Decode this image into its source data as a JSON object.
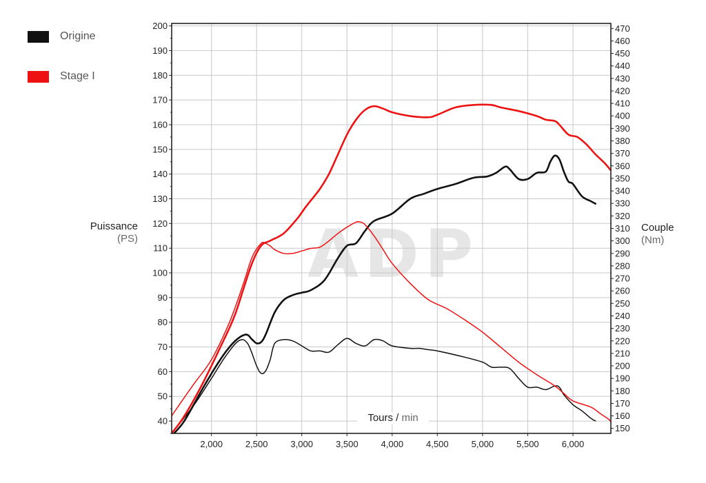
{
  "legend": {
    "items": [
      {
        "label": "Origine",
        "color": "#111111"
      },
      {
        "label": "Stage I",
        "color": "#ee1111"
      }
    ]
  },
  "axes": {
    "left_title": "Puissance",
    "left_unit": "(PS)",
    "right_title": "Couple",
    "right_unit": "(Nm)",
    "x_title": "Tours",
    "x_sep": " / ",
    "x_unit": "min"
  },
  "watermark": {
    "text": "ADP"
  },
  "chart_data": {
    "type": "line",
    "x_range": [
      1560,
      6420
    ],
    "x_ticks": [
      2000,
      2500,
      3000,
      3500,
      4000,
      4500,
      5000,
      5500,
      6000
    ],
    "x_tick_labels": [
      "2,000",
      "2,500",
      "3,000",
      "3,500",
      "4,000",
      "4,500",
      "5,000",
      "5,500",
      "6,000"
    ],
    "y_left": {
      "range": [
        35,
        201
      ],
      "ticks": [
        40,
        50,
        60,
        70,
        80,
        90,
        100,
        110,
        120,
        130,
        140,
        150,
        160,
        170,
        180,
        190,
        200
      ]
    },
    "y_right": {
      "range": [
        146,
        474
      ],
      "ticks": [
        150,
        160,
        170,
        180,
        190,
        200,
        210,
        220,
        230,
        240,
        250,
        260,
        270,
        280,
        290,
        300,
        310,
        320,
        330,
        340,
        350,
        360,
        370,
        380,
        390,
        400,
        410,
        420,
        430,
        440,
        450,
        460,
        470
      ]
    },
    "grid": true,
    "legend_position": "top-left",
    "series": [
      {
        "name": "Origine",
        "quantity": "power",
        "axis": "left",
        "color": "#111111",
        "x": [
          1560,
          1700,
          1900,
          2100,
          2250,
          2380,
          2450,
          2500,
          2550,
          2600,
          2700,
          2800,
          2900,
          3000,
          3100,
          3250,
          3400,
          3500,
          3600,
          3700,
          3800,
          4000,
          4200,
          4350,
          4500,
          4700,
          4900,
          5050,
          5150,
          5250,
          5300,
          5400,
          5500,
          5600,
          5700,
          5750,
          5800,
          5850,
          5900,
          5950,
          6000,
          6100,
          6200,
          6250
        ],
        "y": [
          34,
          40,
          53,
          65,
          72,
          75,
          73,
          71.5,
          72,
          75,
          84,
          89,
          91,
          92,
          93,
          97,
          106,
          111,
          112,
          117,
          121,
          124,
          130,
          132,
          134,
          136,
          138.5,
          139,
          140.5,
          143,
          142,
          138,
          138,
          140.5,
          141,
          145,
          147.5,
          146,
          141,
          137,
          136,
          131,
          129,
          128
        ]
      },
      {
        "name": "Origine",
        "quantity": "torque",
        "axis": "right",
        "color": "#111111",
        "x": [
          1560,
          1800,
          2000,
          2150,
          2300,
          2400,
          2500,
          2550,
          2600,
          2650,
          2700,
          2800,
          2900,
          3000,
          3100,
          3200,
          3300,
          3400,
          3500,
          3600,
          3700,
          3800,
          3900,
          4000,
          4200,
          4300,
          4400,
          4500,
          4800,
          5000,
          5100,
          5200,
          5300,
          5400,
          5500,
          5600,
          5700,
          5800,
          5850,
          5900,
          6000,
          6100,
          6200,
          6250
        ],
        "y": [
          146,
          168,
          190,
          207,
          220,
          218,
          200,
          194,
          196,
          205,
          218,
          221,
          220,
          216,
          212,
          212,
          211,
          217,
          222,
          218,
          216,
          221,
          220,
          216,
          214,
          214,
          213,
          212,
          207,
          203,
          199,
          199,
          198,
          190,
          183,
          183,
          181,
          184,
          183,
          177,
          169,
          164,
          158,
          156
        ]
      },
      {
        "name": "Stage I",
        "quantity": "power",
        "axis": "left",
        "color": "#ee1111",
        "x": [
          1560,
          1700,
          1900,
          2100,
          2250,
          2350,
          2450,
          2550,
          2650,
          2800,
          2950,
          3050,
          3200,
          3300,
          3400,
          3500,
          3600,
          3700,
          3800,
          3900,
          4000,
          4200,
          4400,
          4500,
          4700,
          4900,
          5100,
          5200,
          5400,
          5600,
          5700,
          5800,
          5850,
          5950,
          6050,
          6150,
          6250,
          6350,
          6420
        ],
        "y": [
          35,
          42,
          55,
          70,
          82,
          93,
          104,
          111,
          113,
          116,
          122,
          127,
          134,
          140,
          148,
          156,
          162,
          166,
          167.5,
          166.5,
          165,
          163.5,
          163,
          164,
          167,
          168,
          168,
          167,
          165.5,
          163.5,
          162,
          161.5,
          160,
          156,
          155,
          152,
          148,
          144.5,
          141.5
        ]
      },
      {
        "name": "Stage I",
        "quantity": "torque",
        "axis": "right",
        "color": "#ee1111",
        "x": [
          1560,
          1800,
          2000,
          2200,
          2350,
          2450,
          2550,
          2600,
          2650,
          2700,
          2800,
          2900,
          3000,
          3100,
          3200,
          3300,
          3400,
          3500,
          3600,
          3650,
          3700,
          3800,
          3900,
          4000,
          4200,
          4400,
          4600,
          4800,
          5000,
          5200,
          5400,
          5600,
          5800,
          5900,
          6000,
          6200,
          6300,
          6400,
          6420
        ],
        "y": [
          160,
          185,
          205,
          235,
          265,
          287,
          298,
          298,
          296,
          293,
          290,
          290,
          292,
          294,
          295,
          300,
          306,
          311,
          315,
          315,
          313,
          304,
          293,
          282,
          266,
          253,
          246,
          237,
          227,
          215,
          203,
          193,
          184,
          178,
          172,
          167,
          162,
          157,
          155
        ]
      }
    ]
  }
}
